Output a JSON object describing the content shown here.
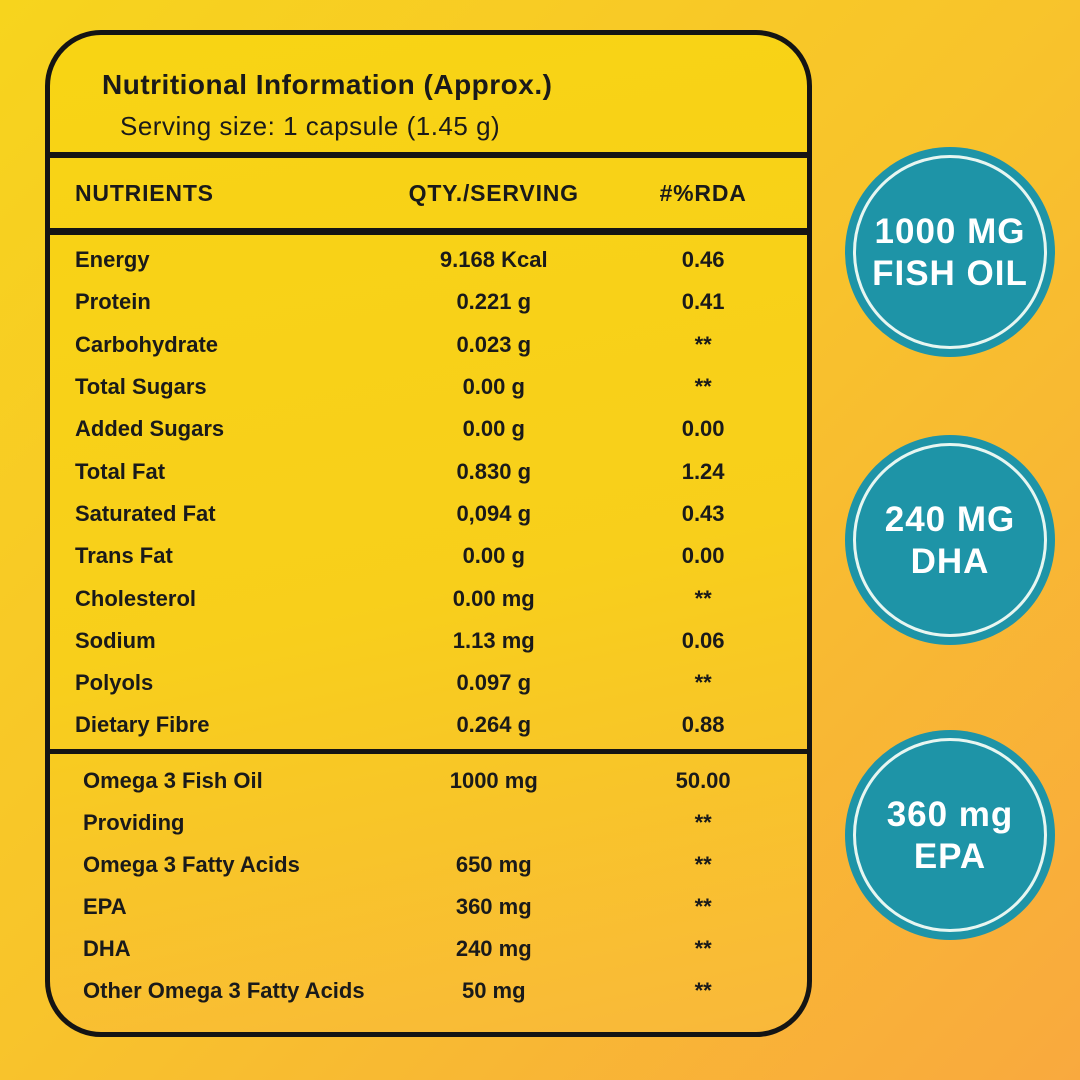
{
  "panel": {
    "title": "Nutritional Information (Approx.)",
    "serving_size": "Serving size: 1 capsule (1.45 g)",
    "columns": {
      "nutrients": "NUTRIENTS",
      "qty": "QTY./SERVING",
      "rda": "#%RDA"
    },
    "rows1": [
      {
        "name": "Energy",
        "qty": "9.168 Kcal",
        "rda": "0.46"
      },
      {
        "name": "Protein",
        "qty": "0.221 g",
        "rda": "0.41"
      },
      {
        "name": "Carbohydrate",
        "qty": "0.023 g",
        "rda": "**"
      },
      {
        "name": "Total Sugars",
        "qty": "0.00 g",
        "rda": "**"
      },
      {
        "name": "Added Sugars",
        "qty": "0.00 g",
        "rda": "0.00"
      },
      {
        "name": "Total Fat",
        "qty": "0.830 g",
        "rda": "1.24"
      },
      {
        "name": "Saturated Fat",
        "qty": "0,094 g",
        "rda": "0.43"
      },
      {
        "name": "Trans Fat",
        "qty": "0.00 g",
        "rda": "0.00"
      },
      {
        "name": "Cholesterol",
        "qty": "0.00 mg",
        "rda": "**"
      },
      {
        "name": "Sodium",
        "qty": "1.13 mg",
        "rda": "0.06"
      },
      {
        "name": "Polyols",
        "qty": "0.097 g",
        "rda": "**"
      },
      {
        "name": "Dietary Fibre",
        "qty": "0.264 g",
        "rda": "0.88"
      }
    ],
    "rows2": [
      {
        "name": "Omega 3 Fish Oil",
        "qty": "1000 mg",
        "rda": "50.00"
      },
      {
        "name": "Providing",
        "qty": "",
        "rda": "**"
      },
      {
        "name": "Omega 3 Fatty Acids",
        "qty": "650 mg",
        "rda": "**"
      },
      {
        "name": "EPA",
        "qty": "360 mg",
        "rda": "**"
      },
      {
        "name": "DHA",
        "qty": "240 mg",
        "rda": "**"
      },
      {
        "name": "Other Omega 3 Fatty Acids",
        "qty": "50 mg",
        "rda": "**"
      }
    ]
  },
  "badges": [
    {
      "line1": "1000 MG",
      "line2": "FISH OIL"
    },
    {
      "line1": "240 MG",
      "line2": "DHA"
    },
    {
      "line1": "360 mg",
      "line2": "EPA"
    }
  ],
  "colors": {
    "badge_teal": "#1e94a7",
    "badge_ring": "#e7f6f1",
    "panel_yellow_top": "#f8d414",
    "panel_yellow_bottom": "#f9b83b",
    "background_top_left": "#f7d41d",
    "background_bottom_right": "#f9a93e",
    "border_black": "#141414",
    "text": "#1a1a1a"
  }
}
